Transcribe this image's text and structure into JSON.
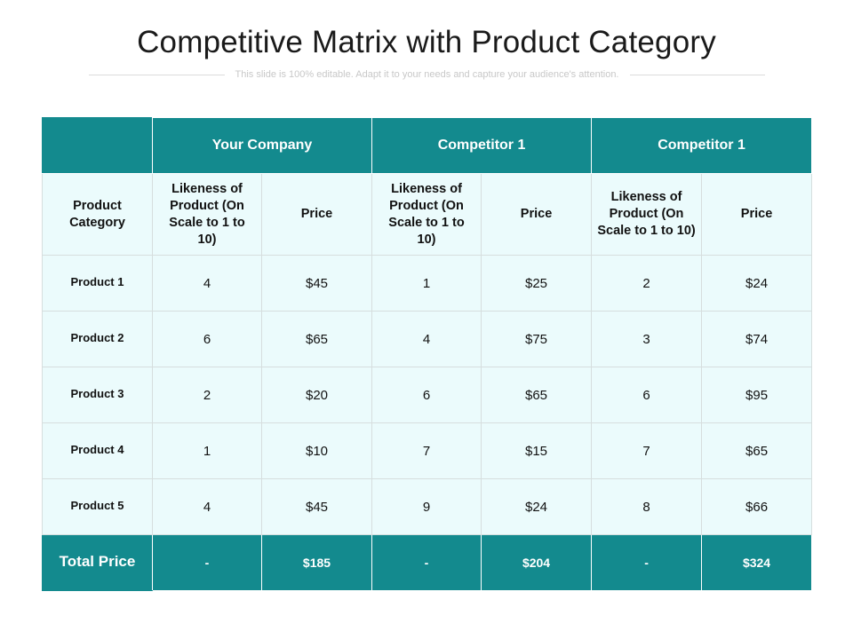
{
  "title": "Competitive Matrix with Product Category",
  "subtitle": "This slide is 100% editable. Adapt it to your needs and capture your audience's attention.",
  "table": {
    "group_headers": [
      "Your Company",
      "Competitor 1",
      "Competitor 1"
    ],
    "category_header": "Product Category",
    "likeness_header": "Likeness of Product (On Scale to 1 to 10)",
    "price_header": "Price",
    "rows": [
      {
        "label": "Product 1",
        "values": [
          "4",
          "$45",
          "1",
          "$25",
          "2",
          "$24"
        ]
      },
      {
        "label": "Product 2",
        "values": [
          "6",
          "$65",
          "4",
          "$75",
          "3",
          "$74"
        ]
      },
      {
        "label": "Product 3",
        "values": [
          "2",
          "$20",
          "6",
          "$65",
          "6",
          "$95"
        ]
      },
      {
        "label": "Product 4",
        "values": [
          "1",
          "$10",
          "7",
          "$15",
          "7",
          "$65"
        ]
      },
      {
        "label": "Product 5",
        "values": [
          "4",
          "$45",
          "9",
          "$24",
          "8",
          "$66"
        ]
      }
    ],
    "total": {
      "label": "Total Price",
      "values": [
        "-",
        "$185",
        "-",
        "$204",
        "-",
        "$324"
      ]
    }
  },
  "colors": {
    "header": "#138a8e",
    "row_bg": "#ebfbfc",
    "grid": "#d6dede"
  }
}
